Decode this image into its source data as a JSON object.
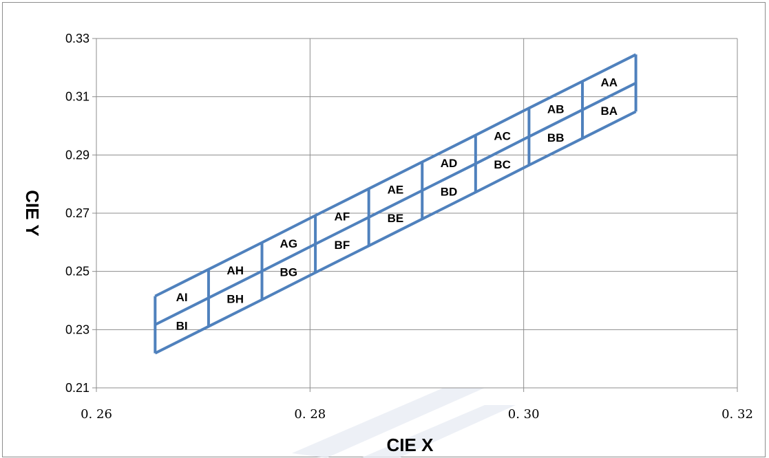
{
  "chart_data": {
    "type": "line",
    "title": "",
    "xlabel": "CIE  X",
    "ylabel": "CIE  Y",
    "xlim": [
      0.26,
      0.32
    ],
    "ylim": [
      0.21,
      0.33
    ],
    "x_ticks": [
      "0.26",
      "0.28",
      "0.30",
      "0.32"
    ],
    "y_ticks": [
      "0.21",
      "0.23",
      "0.25",
      "0.27",
      "0.29",
      "0.31",
      "0.33"
    ],
    "grid": true,
    "legend": "none",
    "line_color": "#4f81bd",
    "bin_boundaries_x": [
      0.2655,
      0.2705,
      0.2755,
      0.2805,
      0.2855,
      0.2905,
      0.2955,
      0.3005,
      0.3055,
      0.3105
    ],
    "rows": {
      "top_edge_y": [
        0.2415,
        0.2507,
        0.2599,
        0.2692,
        0.2784,
        0.2876,
        0.2968,
        0.3061,
        0.3153,
        0.3245
      ],
      "middle_edge_y": [
        0.2317,
        0.2409,
        0.2501,
        0.2594,
        0.2686,
        0.2778,
        0.287,
        0.2963,
        0.3055,
        0.3147
      ],
      "bottom_edge_y": [
        0.2219,
        0.2311,
        0.2403,
        0.2496,
        0.2588,
        0.268,
        0.2772,
        0.2865,
        0.2957,
        0.3049
      ]
    },
    "bins": [
      {
        "label": "AI",
        "row": "A",
        "col": 0
      },
      {
        "label": "AH",
        "row": "A",
        "col": 1
      },
      {
        "label": "AG",
        "row": "A",
        "col": 2
      },
      {
        "label": "AF",
        "row": "A",
        "col": 3
      },
      {
        "label": "AE",
        "row": "A",
        "col": 4
      },
      {
        "label": "AD",
        "row": "A",
        "col": 5
      },
      {
        "label": "AC",
        "row": "A",
        "col": 6
      },
      {
        "label": "AB",
        "row": "A",
        "col": 7
      },
      {
        "label": "AA",
        "row": "A",
        "col": 8
      },
      {
        "label": "BI",
        "row": "B",
        "col": 0
      },
      {
        "label": "BH",
        "row": "B",
        "col": 1
      },
      {
        "label": "BG",
        "row": "B",
        "col": 2
      },
      {
        "label": "BF",
        "row": "B",
        "col": 3
      },
      {
        "label": "BE",
        "row": "B",
        "col": 4
      },
      {
        "label": "BD",
        "row": "B",
        "col": 5
      },
      {
        "label": "BC",
        "row": "B",
        "col": 6
      },
      {
        "label": "BB",
        "row": "B",
        "col": 7
      },
      {
        "label": "BA",
        "row": "B",
        "col": 8
      }
    ]
  }
}
